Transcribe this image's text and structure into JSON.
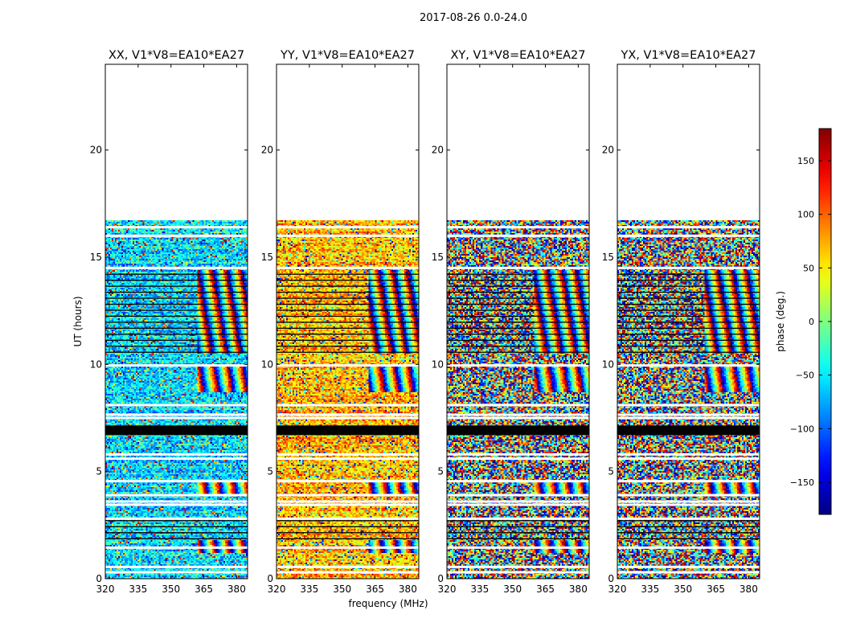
{
  "figure": {
    "suptitle": "2017-08-26 0.0-24.0",
    "xlabel": "frequency (MHz)",
    "ylabel": "UT (hours)"
  },
  "chart_data": {
    "type": "heatmap",
    "xlim": [
      320,
      385
    ],
    "ylim": [
      0,
      24
    ],
    "xticks": [
      320,
      335,
      350,
      365,
      380
    ],
    "yticks": [
      0,
      5,
      10,
      15,
      20
    ],
    "data_extent_hours": [
      0,
      16.7
    ],
    "gaps_hours": [
      0.3,
      0.55,
      1.45,
      2.8,
      3.45,
      3.6,
      3.9,
      4.55,
      5.6,
      5.8,
      7.5,
      7.65,
      8.1,
      9.95,
      14.5,
      16.0,
      16.4
    ],
    "bands_hours": [
      [
        6.7,
        7.15
      ]
    ],
    "dense_line_blocks_hours": [
      [
        1.8,
        2.7
      ],
      [
        10.5,
        14.4
      ]
    ],
    "panels": [
      {
        "title": "XX, V1*V8=EA10*EA27",
        "base_phase": -55,
        "spread": 45,
        "fringe_from_mhz": 362
      },
      {
        "title": "YY, V1*V8=EA10*EA27",
        "base_phase": 70,
        "spread": 45,
        "fringe_from_mhz": 362
      },
      {
        "title": "XY, V1*V8=EA10*EA27",
        "base_phase": 0,
        "spread": 180,
        "fringe_from_mhz": 360
      },
      {
        "title": "YX, V1*V8=EA10*EA27",
        "base_phase": 0,
        "spread": 180,
        "fringe_from_mhz": 360
      }
    ],
    "colorbar": {
      "label": "phase (deg.)",
      "range": [
        -180,
        180
      ],
      "ticks": [
        -150,
        -100,
        -50,
        0,
        50,
        100,
        150
      ],
      "tick_labels": [
        "−150",
        "−100",
        "−50",
        "0",
        "50",
        "100",
        "150"
      ],
      "colormap": "jet"
    }
  }
}
